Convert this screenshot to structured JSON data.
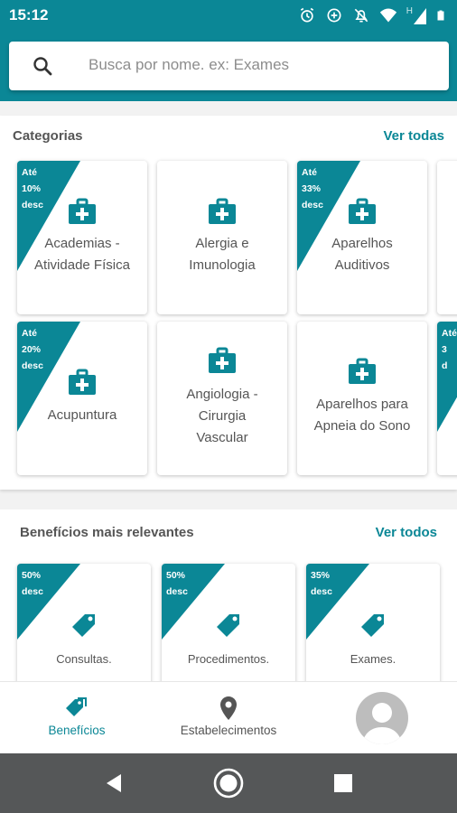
{
  "status_bar": {
    "time": "15:12",
    "icons": [
      "alarm-icon",
      "data-saver-icon",
      "notifications-off-icon",
      "wifi-icon",
      "h-signal-icon",
      "battery-icon"
    ],
    "signal_label": "H"
  },
  "search": {
    "placeholder": "Busca por nome. ex: Exames",
    "icon": "search-icon"
  },
  "categories": {
    "title": "Categorias",
    "link": "Ver todas",
    "items": [
      {
        "label": "Academias -\nAtividade Física",
        "badge": "Até\n10%\ndesc",
        "icon": "medical-kit-icon"
      },
      {
        "label": "Alergia e\nImunologia",
        "badge": "",
        "icon": "medical-kit-icon"
      },
      {
        "label": "Aparelhos\nAuditivos",
        "badge": "Até\n33%\ndesc",
        "icon": "medical-kit-icon"
      },
      {
        "label": "Acupuntura",
        "badge": "Até\n20%\ndesc",
        "icon": "medical-kit-icon"
      },
      {
        "label": "Angiologia -\nCirurgia\nVascular",
        "badge": "",
        "icon": "medical-kit-icon"
      },
      {
        "label": "Aparelhos para\nApneia do Sono",
        "badge": "",
        "icon": "medical-kit-icon"
      },
      {
        "label": "",
        "badge": "Até\n3\nd",
        "icon": "medical-kit-icon"
      }
    ]
  },
  "benefits": {
    "title": "Benefícios mais relevantes",
    "link": "Ver todos",
    "items": [
      {
        "label": "Consultas.",
        "badge": "50%\ndesc",
        "icon": "tag-icon"
      },
      {
        "label": "Procedimentos.",
        "badge": "50%\ndesc",
        "icon": "tag-icon"
      },
      {
        "label": "Exames.",
        "badge": "35%\ndesc",
        "icon": "tag-icon"
      }
    ]
  },
  "bottom_nav": {
    "items": [
      {
        "label": "Benefícios",
        "icon": "tags-icon",
        "active": true
      },
      {
        "label": "Estabelecimentos",
        "icon": "location-pin-icon",
        "active": false
      }
    ],
    "profile_icon": "avatar-icon"
  },
  "system_nav": {
    "icons": [
      "back-icon",
      "home-icon",
      "recents-icon"
    ]
  },
  "colors": {
    "primary": "#0b8796",
    "text": "#555555",
    "placeholder": "#8d8d8d",
    "inactive": "#555555"
  }
}
